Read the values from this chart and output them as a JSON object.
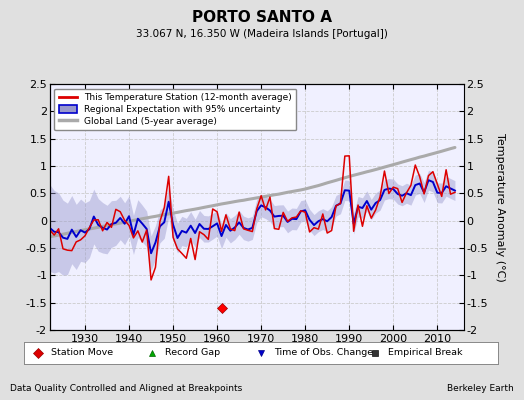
{
  "title": "PORTO SANTO A",
  "subtitle": "33.067 N, 16.350 W (Madeira Islands [Portugal])",
  "ylabel_right": "Temperature Anomaly (°C)",
  "footer_left": "Data Quality Controlled and Aligned at Breakpoints",
  "footer_right": "Berkeley Earth",
  "xlim": [
    1922,
    2016
  ],
  "ylim": [
    -2.0,
    2.5
  ],
  "yticks_left": [
    -2,
    -1.5,
    -1,
    -0.5,
    0,
    0.5,
    1,
    1.5,
    2,
    2.5
  ],
  "yticks_right": [
    -2,
    -1.5,
    -1,
    -0.5,
    0,
    0.5,
    1,
    1.5,
    2,
    2.5
  ],
  "xticks": [
    1930,
    1940,
    1950,
    1960,
    1970,
    1980,
    1990,
    2000,
    2010
  ],
  "station_move_x": 1961,
  "station_move_y": -1.6,
  "bg_color": "#e0e0e0",
  "plot_bg_color": "#f0f0ff",
  "red_line_color": "#dd0000",
  "blue_line_color": "#0000cc",
  "blue_fill_color": "#9999cc",
  "gray_line_color": "#aaaaaa",
  "grid_color": "#cccccc",
  "grid_style": "--"
}
